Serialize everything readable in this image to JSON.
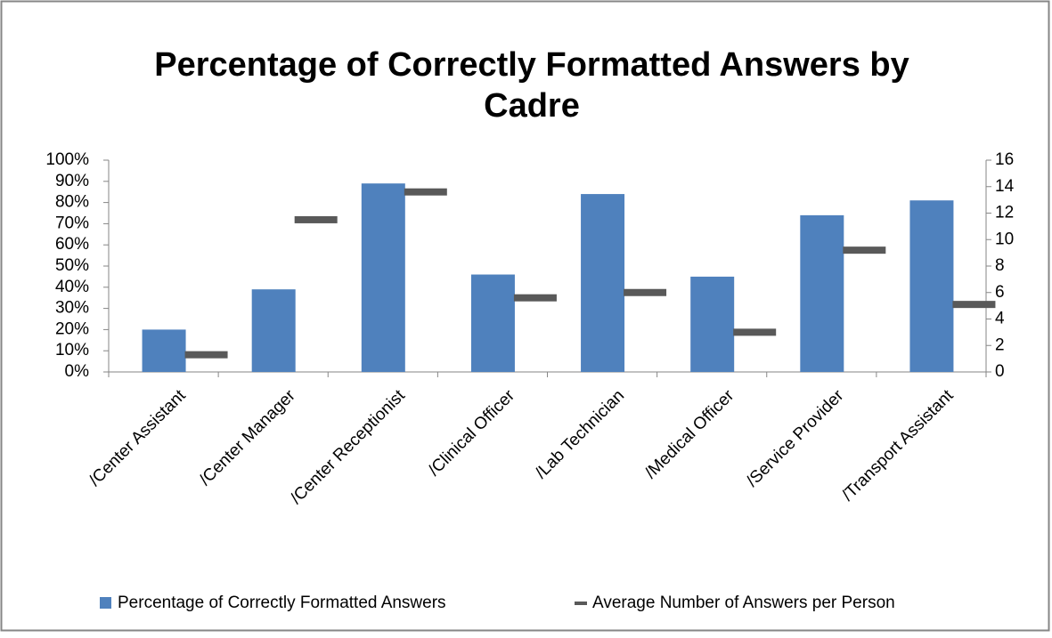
{
  "chart_data": {
    "type": "bar",
    "title": "Percentage of Correctly Formatted Answers by Cadre",
    "categories": [
      "/Center Assistant",
      "/Center Manager",
      "/Center Receptionist",
      "/Clinical Officer",
      "/Lab Technician",
      "/Medical Officer",
      "/Service Provider",
      "/Transport Assistant"
    ],
    "series": [
      {
        "name": "Percentage of Correctly Formatted Answers",
        "color": "#4f81bd",
        "values": [
          20,
          39,
          89,
          46,
          84,
          45,
          74,
          81
        ]
      },
      {
        "name": "Average Number of Answers per Person",
        "color": "#595959",
        "axis": "y2",
        "values": [
          1.3,
          11.5,
          13.6,
          5.6,
          6,
          3,
          9.2,
          5.1
        ]
      }
    ],
    "ylim": [
      0,
      100
    ],
    "yticks": [
      {
        "value": 0,
        "label": "0%"
      },
      {
        "value": 10,
        "label": "10%"
      },
      {
        "value": 20,
        "label": "20%"
      },
      {
        "value": 30,
        "label": "30%"
      },
      {
        "value": 40,
        "label": "40%"
      },
      {
        "value": 50,
        "label": "50%"
      },
      {
        "value": 60,
        "label": "60%"
      },
      {
        "value": 70,
        "label": "70%"
      },
      {
        "value": 80,
        "label": "80%"
      },
      {
        "value": 90,
        "label": "90%"
      },
      {
        "value": 100,
        "label": "100%"
      }
    ],
    "y2lim": [
      0,
      16
    ],
    "y2ticks": [
      0,
      2,
      4,
      6,
      8,
      10,
      12,
      14,
      16
    ],
    "grid": false,
    "legend": "bottom"
  }
}
